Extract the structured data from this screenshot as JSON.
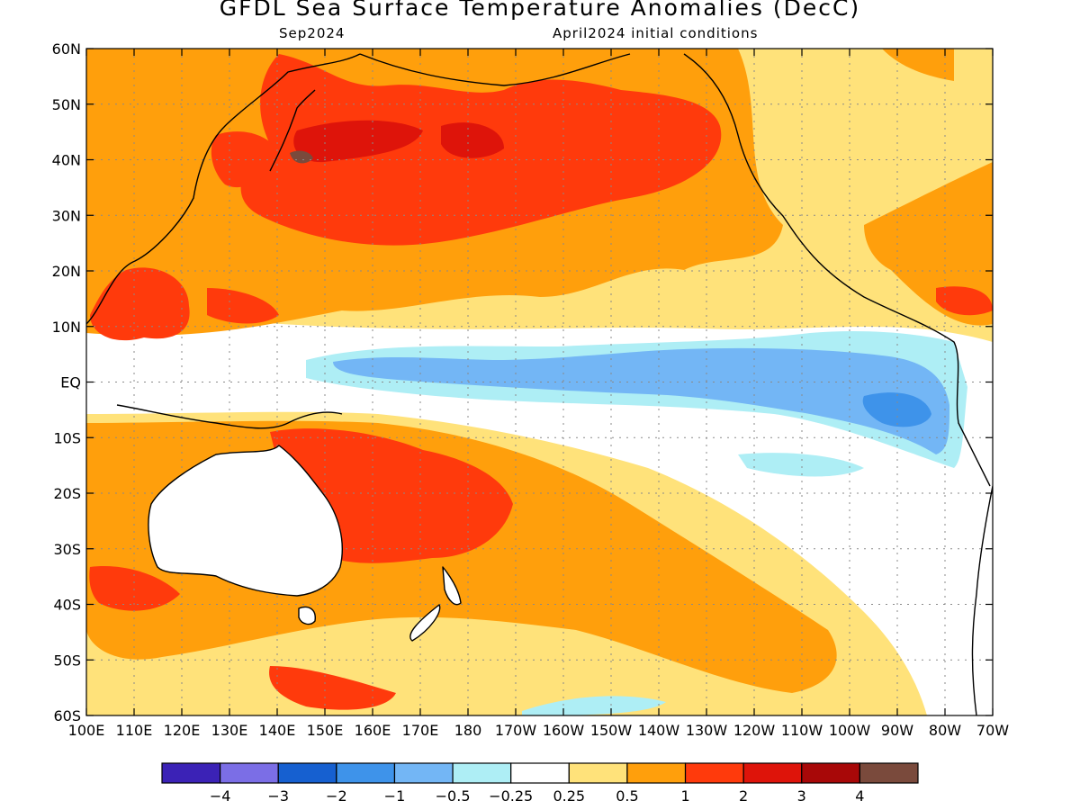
{
  "title": "GFDL Sea Surface Temperature Anomalies (DecC)",
  "subtitle_left": "Sep2024",
  "subtitle_right": "April2024 initial conditions",
  "axes": {
    "lat_labels": [
      "60N",
      "50N",
      "40N",
      "30N",
      "20N",
      "10N",
      "EQ",
      "10S",
      "20S",
      "30S",
      "40S",
      "50S",
      "60S"
    ],
    "lon_labels": [
      "100E",
      "110E",
      "120E",
      "130E",
      "140E",
      "150E",
      "160E",
      "170E",
      "180",
      "170W",
      "160W",
      "150W",
      "140W",
      "130W",
      "120W",
      "110W",
      "100W",
      "90W",
      "80W",
      "70W"
    ]
  },
  "colorbar": {
    "colors": [
      "#3b22b6",
      "#7b6ee6",
      "#1660d0",
      "#3e93ea",
      "#73b6f5",
      "#aeeef5",
      "#ffffff",
      "#ffe27a",
      "#ff9f0c",
      "#ff3a0c",
      "#de140a",
      "#a80808",
      "#7a4a3c"
    ],
    "labels": [
      "-4",
      "-3",
      "-2",
      "-1",
      "-0.5",
      "-0.25",
      "0.25",
      "0.5",
      "1",
      "2",
      "3",
      "4"
    ]
  }
}
